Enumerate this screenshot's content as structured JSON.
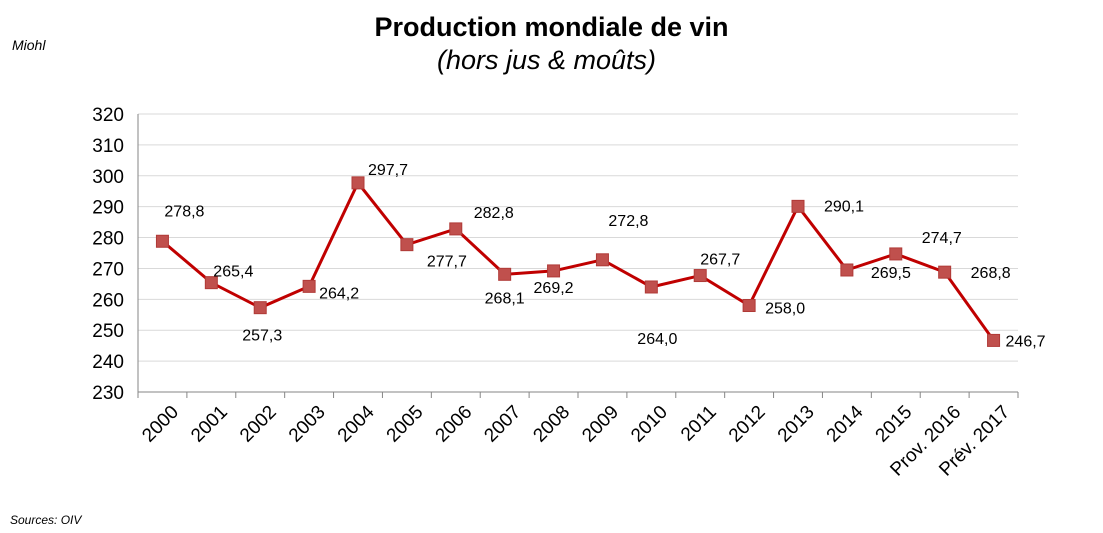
{
  "chart_data": {
    "type": "line",
    "title": "Production mondiale de vin",
    "subtitle": "(hors jus & moûts)",
    "unit_label": "Miohl",
    "source": "Sources: OIV",
    "categories": [
      "2000",
      "2001",
      "2002",
      "2003",
      "2004",
      "2005",
      "2006",
      "2007",
      "2008",
      "2009",
      "2010",
      "2011",
      "2012",
      "2013",
      "2014",
      "2015",
      "Prov. 2016",
      "Prév. 2017"
    ],
    "series": [
      {
        "values": [
          278.8,
          265.4,
          257.3,
          264.2,
          297.7,
          277.7,
          282.8,
          268.1,
          269.2,
          272.8,
          264.0,
          267.7,
          258.0,
          290.1,
          269.5,
          274.7,
          268.8,
          246.7
        ],
        "labels": [
          "278,8",
          "265,4",
          "257,3",
          "264,2",
          "297,7",
          "277,7",
          "282,8",
          "268,1",
          "269,2",
          "272,8",
          "264,0",
          "267,7",
          "258,0",
          "290,1",
          "269,5",
          "274,7",
          "268,8",
          "246,7"
        ]
      }
    ],
    "ylim": [
      230,
      320
    ],
    "yticks": [
      230,
      240,
      250,
      260,
      270,
      280,
      290,
      300,
      310,
      320
    ],
    "grid": true,
    "legend": "none",
    "colors": {
      "line": "#c00000",
      "marker": "#c0504d",
      "grid": "#d9d9d9",
      "axis": "#868686"
    }
  }
}
